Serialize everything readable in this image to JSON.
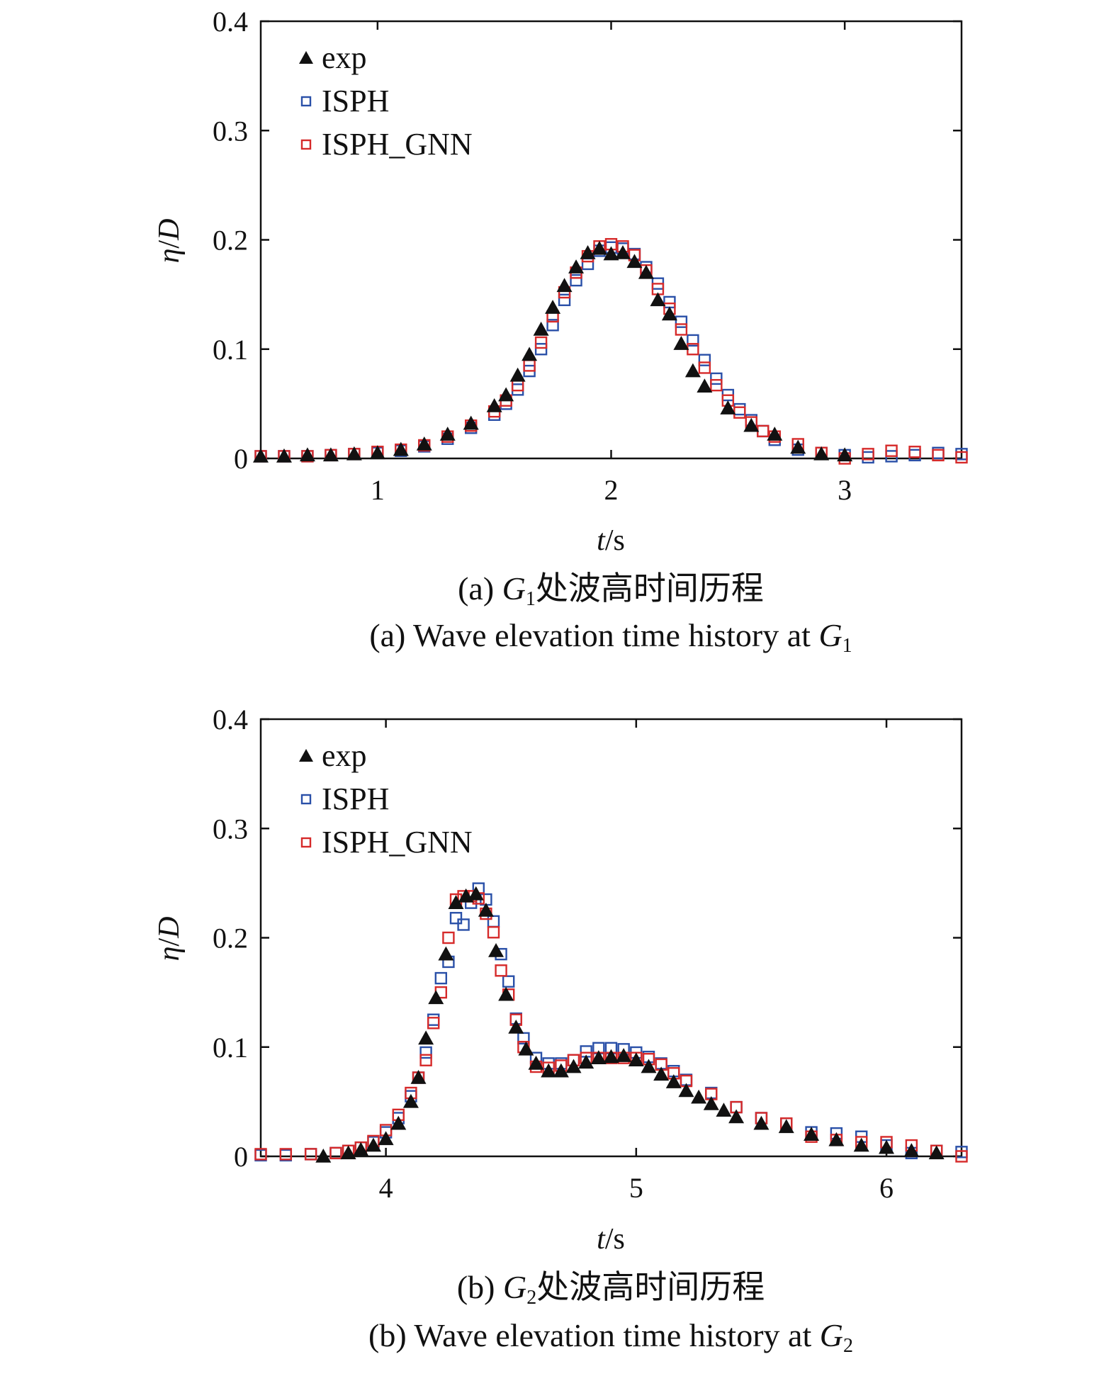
{
  "colors": {
    "exp": "#111111",
    "isph": "#2a50a8",
    "isph_gnn": "#d62a2a",
    "axis": "#111111"
  },
  "chart_data": [
    {
      "type": "scatter",
      "id": "a",
      "xlabel_var": "t",
      "xlabel_unit": "/s",
      "ylabel_var": "η",
      "ylabel_sep": "/",
      "ylabel_var2": "D",
      "xlim": [
        0.5,
        3.5
      ],
      "ylim": [
        0,
        0.4
      ],
      "xticks": [
        1,
        2,
        3
      ],
      "yticks": [
        0,
        0.1,
        0.2,
        0.3,
        0.4
      ],
      "xtick_labels": [
        "1",
        "2",
        "3"
      ],
      "ytick_labels": [
        "0",
        "0.1",
        "0.2",
        "0.3",
        "0.4"
      ],
      "legend": [
        "exp",
        "ISPH",
        "ISPH_GNN"
      ],
      "legend_position": "top-left",
      "caption_cn_pre": "(a) ",
      "caption_cn_var": "G",
      "caption_cn_sub": "1",
      "caption_cn_post": "处波高时间历程",
      "caption_en_pre": "(a) Wave elevation time history at ",
      "caption_en_var": "G",
      "caption_en_sub": "1",
      "series": [
        {
          "name": "exp",
          "marker": "triangle",
          "x": [
            0.5,
            0.6,
            0.7,
            0.8,
            0.9,
            1.0,
            1.1,
            1.2,
            1.3,
            1.4,
            1.5,
            1.55,
            1.6,
            1.65,
            1.7,
            1.75,
            1.8,
            1.85,
            1.9,
            1.95,
            2.0,
            2.05,
            2.1,
            2.15,
            2.2,
            2.25,
            2.3,
            2.35,
            2.4,
            2.5,
            2.6,
            2.7,
            2.8,
            2.9,
            3.0
          ],
          "y": [
            0.002,
            0.002,
            0.003,
            0.003,
            0.004,
            0.005,
            0.008,
            0.013,
            0.022,
            0.032,
            0.048,
            0.058,
            0.076,
            0.095,
            0.118,
            0.138,
            0.158,
            0.175,
            0.188,
            0.192,
            0.187,
            0.188,
            0.18,
            0.17,
            0.145,
            0.132,
            0.105,
            0.08,
            0.066,
            0.046,
            0.03,
            0.022,
            0.01,
            0.004,
            0.003
          ]
        },
        {
          "name": "ISPH",
          "marker": "square",
          "x": [
            0.5,
            0.6,
            0.7,
            0.8,
            0.9,
            1.0,
            1.1,
            1.2,
            1.3,
            1.4,
            1.5,
            1.55,
            1.6,
            1.65,
            1.7,
            1.75,
            1.8,
            1.85,
            1.9,
            1.95,
            2.0,
            2.05,
            2.1,
            2.15,
            2.2,
            2.25,
            2.3,
            2.35,
            2.4,
            2.45,
            2.5,
            2.55,
            2.6,
            2.65,
            2.7,
            2.8,
            2.9,
            3.0,
            3.1,
            3.2,
            3.3,
            3.4,
            3.5
          ],
          "y": [
            0.002,
            0.002,
            0.002,
            0.003,
            0.004,
            0.005,
            0.007,
            0.011,
            0.018,
            0.028,
            0.04,
            0.05,
            0.063,
            0.08,
            0.1,
            0.122,
            0.145,
            0.163,
            0.178,
            0.19,
            0.193,
            0.192,
            0.187,
            0.175,
            0.16,
            0.143,
            0.125,
            0.108,
            0.09,
            0.073,
            0.058,
            0.045,
            0.035,
            0.025,
            0.017,
            0.008,
            0.005,
            0.003,
            0.001,
            0.002,
            0.003,
            0.005,
            0.004
          ]
        },
        {
          "name": "ISPH_GNN",
          "marker": "square",
          "x": [
            0.5,
            0.6,
            0.7,
            0.8,
            0.9,
            1.0,
            1.1,
            1.2,
            1.3,
            1.4,
            1.5,
            1.55,
            1.6,
            1.65,
            1.7,
            1.75,
            1.8,
            1.85,
            1.9,
            1.95,
            2.0,
            2.05,
            2.1,
            2.15,
            2.2,
            2.25,
            2.3,
            2.35,
            2.4,
            2.45,
            2.5,
            2.55,
            2.6,
            2.65,
            2.7,
            2.8,
            2.9,
            3.0,
            3.1,
            3.2,
            3.3,
            3.4,
            3.5
          ],
          "y": [
            0.002,
            0.002,
            0.002,
            0.003,
            0.004,
            0.006,
            0.008,
            0.012,
            0.02,
            0.03,
            0.043,
            0.053,
            0.067,
            0.085,
            0.106,
            0.13,
            0.152,
            0.17,
            0.185,
            0.194,
            0.196,
            0.194,
            0.186,
            0.172,
            0.155,
            0.137,
            0.118,
            0.1,
            0.083,
            0.067,
            0.053,
            0.042,
            0.033,
            0.025,
            0.02,
            0.013,
            0.005,
            0.0,
            0.004,
            0.007,
            0.006,
            0.003,
            0.001
          ]
        }
      ]
    },
    {
      "type": "scatter",
      "id": "b",
      "xlabel_var": "t",
      "xlabel_unit": "/s",
      "ylabel_var": "η",
      "ylabel_sep": "/",
      "ylabel_var2": "D",
      "xlim": [
        3.5,
        6.3
      ],
      "ylim": [
        0,
        0.4
      ],
      "xticks": [
        4,
        5,
        6
      ],
      "yticks": [
        0,
        0.1,
        0.2,
        0.3,
        0.4
      ],
      "xtick_labels": [
        "4",
        "5",
        "6"
      ],
      "ytick_labels": [
        "0",
        "0.1",
        "0.2",
        "0.3",
        "0.4"
      ],
      "legend": [
        "exp",
        "ISPH",
        "ISPH_GNN"
      ],
      "legend_position": "top-left",
      "caption_cn_pre": "(b) ",
      "caption_cn_var": "G",
      "caption_cn_sub": "2",
      "caption_cn_post": "处波高时间历程",
      "caption_en_pre": "(b) Wave elevation time history at ",
      "caption_en_var": "G",
      "caption_en_sub": "2",
      "series": [
        {
          "name": "exp",
          "marker": "triangle",
          "x": [
            3.75,
            3.85,
            3.9,
            3.95,
            4.0,
            4.05,
            4.1,
            4.13,
            4.16,
            4.2,
            4.24,
            4.28,
            4.32,
            4.36,
            4.4,
            4.44,
            4.48,
            4.52,
            4.56,
            4.6,
            4.65,
            4.7,
            4.75,
            4.8,
            4.85,
            4.9,
            4.95,
            5.0,
            5.05,
            5.1,
            5.15,
            5.2,
            5.25,
            5.3,
            5.35,
            5.4,
            5.5,
            5.6,
            5.7,
            5.8,
            5.9,
            6.0,
            6.1,
            6.2
          ],
          "y": [
            0.0,
            0.003,
            0.006,
            0.01,
            0.016,
            0.03,
            0.05,
            0.072,
            0.108,
            0.145,
            0.185,
            0.232,
            0.238,
            0.24,
            0.225,
            0.188,
            0.148,
            0.118,
            0.098,
            0.085,
            0.078,
            0.078,
            0.082,
            0.086,
            0.09,
            0.091,
            0.092,
            0.088,
            0.082,
            0.075,
            0.068,
            0.06,
            0.054,
            0.048,
            0.042,
            0.036,
            0.03,
            0.027,
            0.02,
            0.015,
            0.01,
            0.008,
            0.005,
            0.003
          ]
        },
        {
          "name": "ISPH",
          "marker": "square",
          "x": [
            3.5,
            3.6,
            3.7,
            3.8,
            3.85,
            3.9,
            3.95,
            4.0,
            4.05,
            4.1,
            4.13,
            4.16,
            4.19,
            4.22,
            4.25,
            4.28,
            4.31,
            4.34,
            4.37,
            4.4,
            4.43,
            4.46,
            4.49,
            4.52,
            4.55,
            4.6,
            4.65,
            4.7,
            4.75,
            4.8,
            4.85,
            4.9,
            4.95,
            5.0,
            5.05,
            5.1,
            5.15,
            5.2,
            5.3,
            5.4,
            5.5,
            5.6,
            5.7,
            5.8,
            5.9,
            6.0,
            6.1,
            6.2,
            6.3
          ],
          "y": [
            0.001,
            0.001,
            0.002,
            0.003,
            0.005,
            0.008,
            0.013,
            0.022,
            0.035,
            0.055,
            0.072,
            0.095,
            0.125,
            0.163,
            0.178,
            0.218,
            0.212,
            0.232,
            0.245,
            0.235,
            0.215,
            0.185,
            0.16,
            0.126,
            0.108,
            0.09,
            0.085,
            0.085,
            0.088,
            0.096,
            0.099,
            0.099,
            0.098,
            0.095,
            0.091,
            0.085,
            0.078,
            0.07,
            0.058,
            0.045,
            0.035,
            0.03,
            0.022,
            0.021,
            0.018,
            0.01,
            0.003,
            0.005,
            0.004
          ]
        },
        {
          "name": "ISPH_GNN",
          "marker": "square",
          "x": [
            3.5,
            3.6,
            3.7,
            3.8,
            3.85,
            3.9,
            3.95,
            4.0,
            4.05,
            4.1,
            4.13,
            4.16,
            4.19,
            4.22,
            4.25,
            4.28,
            4.31,
            4.34,
            4.37,
            4.4,
            4.43,
            4.46,
            4.49,
            4.52,
            4.55,
            4.6,
            4.65,
            4.7,
            4.75,
            4.8,
            4.85,
            4.9,
            4.95,
            5.0,
            5.05,
            5.1,
            5.15,
            5.2,
            5.3,
            5.4,
            5.5,
            5.6,
            5.7,
            5.8,
            5.9,
            6.0,
            6.1,
            6.2,
            6.3
          ],
          "y": [
            0.002,
            0.002,
            0.002,
            0.003,
            0.005,
            0.008,
            0.014,
            0.024,
            0.038,
            0.058,
            0.072,
            0.088,
            0.122,
            0.15,
            0.2,
            0.235,
            0.238,
            0.238,
            0.236,
            0.222,
            0.205,
            0.17,
            0.148,
            0.125,
            0.1,
            0.082,
            0.081,
            0.083,
            0.088,
            0.09,
            0.09,
            0.09,
            0.09,
            0.09,
            0.089,
            0.084,
            0.076,
            0.069,
            0.057,
            0.045,
            0.035,
            0.03,
            0.018,
            0.015,
            0.013,
            0.013,
            0.01,
            0.005,
            0.0
          ]
        }
      ]
    }
  ]
}
